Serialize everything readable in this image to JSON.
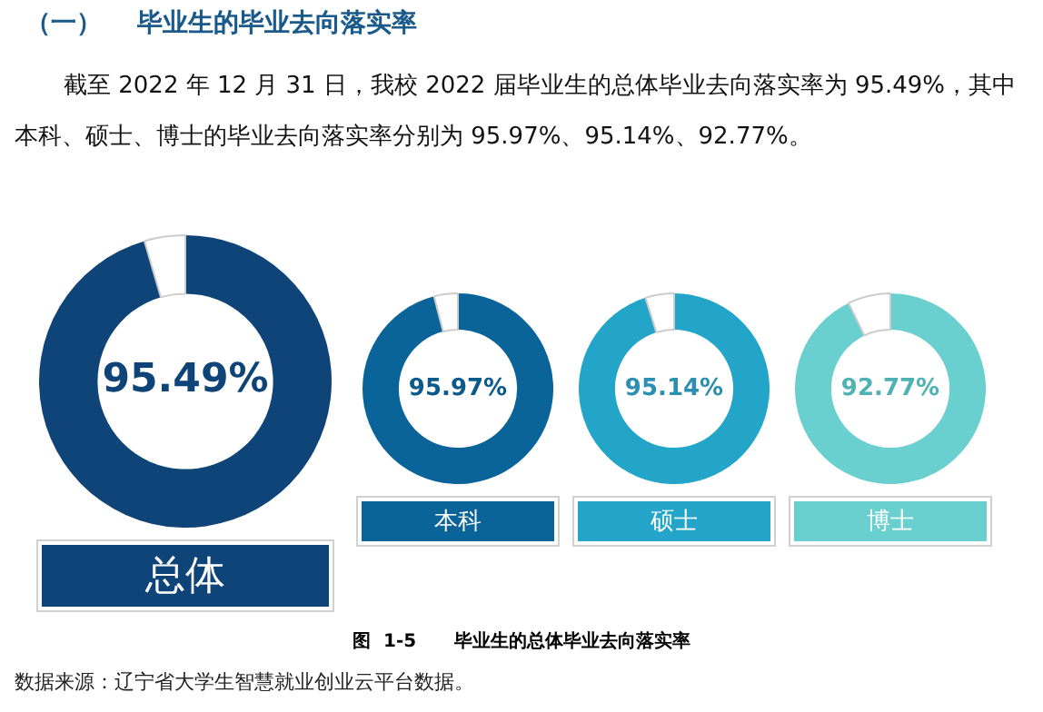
{
  "chart_data": [
    {
      "type": "donut",
      "title": "（一）    毕业生的毕业去向落实率",
      "subtitle": "截至 2022 年 12 月 31 日，我校 2022 届毕业生的总体毕业去向落实率为 95.49%，其中本科、硕士、博士的毕业去向落实率分别为 95.97%、95.14%、92.77%。",
      "annotations": [
        "图  1-5      毕业生的总体毕业去向落实率",
        "数据来源：辽宁省大学生智慧就业创业云平台数据。"
      ],
      "xlabel": "总体",
      "categories": [
        null,
        null
      ],
      "values": [
        95.49,
        4.51
      ],
      "colors": [
        "#0f4478",
        "#ffffff"
      ],
      "value_labels": [
        "95.49%",
        null
      ],
      "legend": false
    },
    {
      "type": "donut",
      "xlabel": "本科",
      "categories": [
        null,
        null
      ],
      "values": [
        95.97,
        4.03
      ],
      "colors": [
        "#0a6499",
        "#ffffff"
      ],
      "value_labels": [
        "95.97%",
        null
      ],
      "legend": false
    },
    {
      "type": "donut",
      "xlabel": "硕士",
      "categories": [
        null,
        null
      ],
      "values": [
        95.14,
        4.86
      ],
      "colors": [
        "#22a5c8",
        "#ffffff"
      ],
      "value_labels": [
        "95.14%",
        null
      ],
      "legend": false
    },
    {
      "type": "donut",
      "xlabel": "博士",
      "categories": [
        null,
        null
      ],
      "values": [
        92.77,
        7.23
      ],
      "colors": [
        "#6acfcf",
        "#ffffff"
      ],
      "value_labels": [
        "92.77%",
        null
      ],
      "legend": false
    }
  ]
}
